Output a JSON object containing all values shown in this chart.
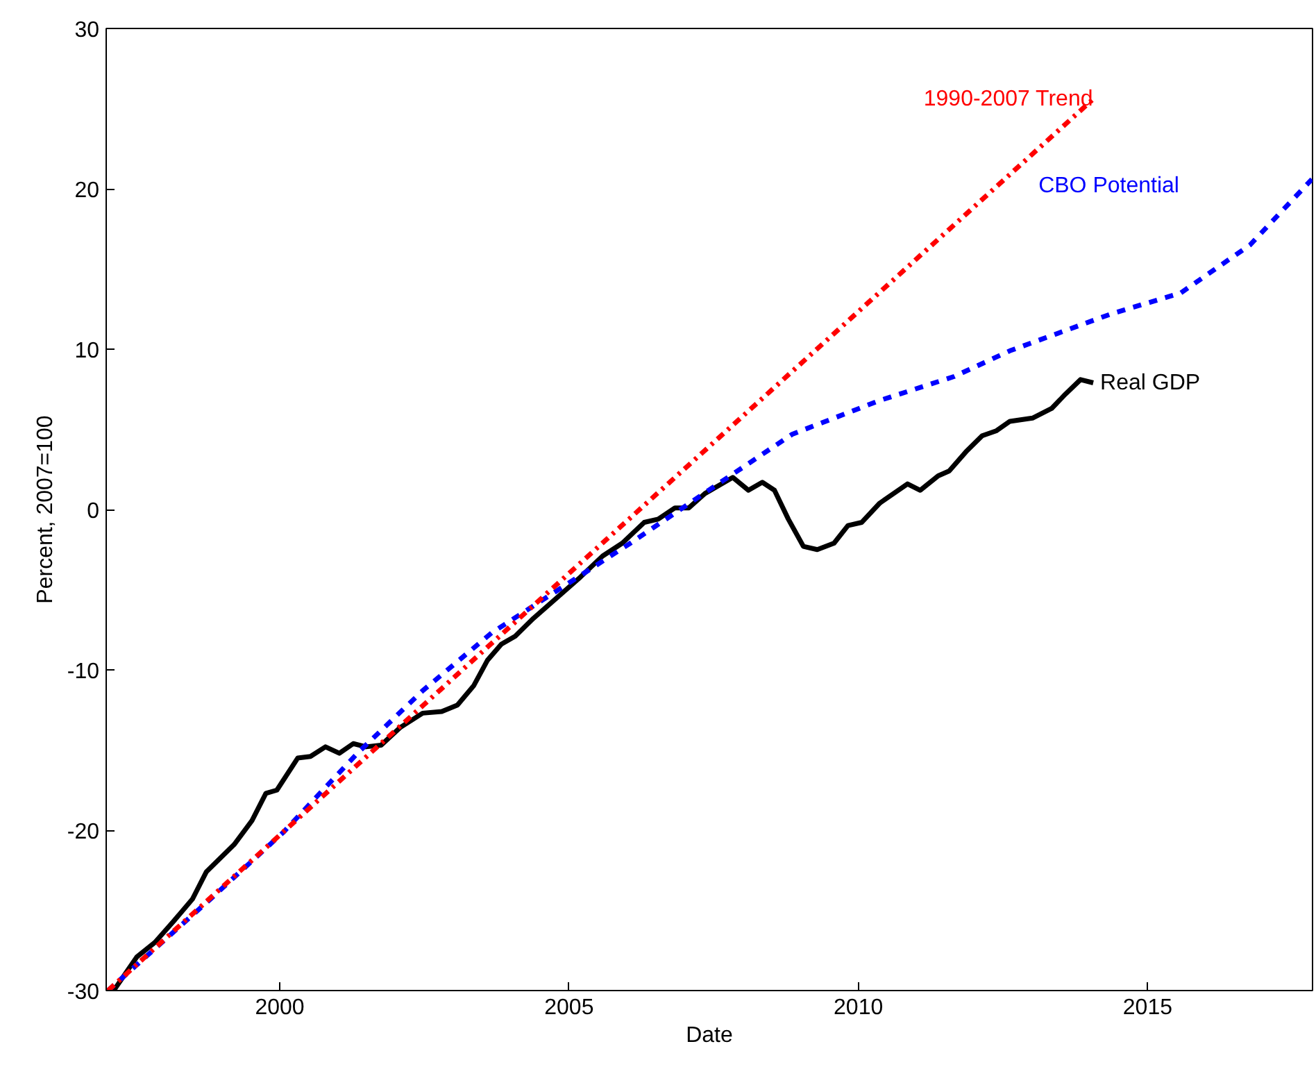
{
  "chart_data": {
    "type": "line",
    "xlabel": "Date",
    "ylabel": "Percent, 2007=100",
    "xlim": [
      1997.0,
      2017.85
    ],
    "ylim": [
      -30,
      30
    ],
    "xticks": [
      2000,
      2005,
      2010,
      2015
    ],
    "yticks": [
      -30,
      -20,
      -10,
      0,
      10,
      20,
      30
    ],
    "grid": false,
    "legend": false,
    "series": [
      {
        "name": "Real GDP",
        "color": "#000000",
        "line_style": "solid",
        "x": [
          1997.13,
          1997.53,
          1997.84,
          1998.16,
          1998.49,
          1998.73,
          1999.21,
          1999.52,
          1999.76,
          1999.95,
          2000.31,
          2000.53,
          2000.79,
          2001.03,
          2001.27,
          2001.49,
          2001.75,
          2002.08,
          2002.47,
          2002.8,
          2003.07,
          2003.35,
          2003.59,
          2003.83,
          2004.07,
          2004.38,
          2004.79,
          2005.2,
          2005.58,
          2005.92,
          2006.3,
          2006.54,
          2006.83,
          2007.07,
          2007.35,
          2007.83,
          2008.1,
          2008.34,
          2008.55,
          2008.79,
          2009.05,
          2009.29,
          2009.58,
          2009.82,
          2010.06,
          2010.37,
          2010.85,
          2011.07,
          2011.38,
          2011.57,
          2011.86,
          2012.14,
          2012.38,
          2012.62,
          2013.01,
          2013.34,
          2013.58,
          2013.84,
          2014.06
        ],
        "values": [
          -30.0,
          -27.9,
          -27.0,
          -25.7,
          -24.3,
          -22.6,
          -20.9,
          -19.4,
          -17.7,
          -17.5,
          -15.5,
          -15.4,
          -14.8,
          -15.2,
          -14.6,
          -14.8,
          -14.7,
          -13.6,
          -12.7,
          -12.6,
          -12.2,
          -11.0,
          -9.4,
          -8.4,
          -7.9,
          -6.8,
          -5.5,
          -4.2,
          -2.9,
          -2.1,
          -0.8,
          -0.6,
          0.1,
          0.1,
          1.0,
          2.0,
          1.2,
          1.7,
          1.2,
          -0.6,
          -2.3,
          -2.5,
          -2.1,
          -1.0,
          -0.8,
          0.4,
          1.6,
          1.2,
          2.1,
          2.4,
          3.6,
          4.6,
          4.9,
          5.5,
          5.7,
          6.3,
          7.2,
          8.1,
          7.9
        ]
      },
      {
        "name": "CBO Potential",
        "color": "#0000ff",
        "line_style": "dashed",
        "x": [
          1997.03,
          1998.8,
          2000.07,
          2001.37,
          2002.47,
          2003.66,
          2004.86,
          2006.06,
          2007.66,
          2008.86,
          2010.37,
          2011.66,
          2012.62,
          2014.37,
          2015.57,
          2016.77,
          2017.84
        ],
        "values": [
          -30.0,
          -24.3,
          -20.1,
          -15.1,
          -11.3,
          -7.7,
          -4.9,
          -2.1,
          1.8,
          4.7,
          6.8,
          8.3,
          9.9,
          12.2,
          13.5,
          16.5,
          20.6
        ]
      },
      {
        "name": "1990-2007 Trend",
        "color": "#ff0000",
        "line_style": "dashdot",
        "x": [
          1997.03,
          2014.06
        ],
        "values": [
          -30.0,
          25.6
        ]
      }
    ]
  }
}
